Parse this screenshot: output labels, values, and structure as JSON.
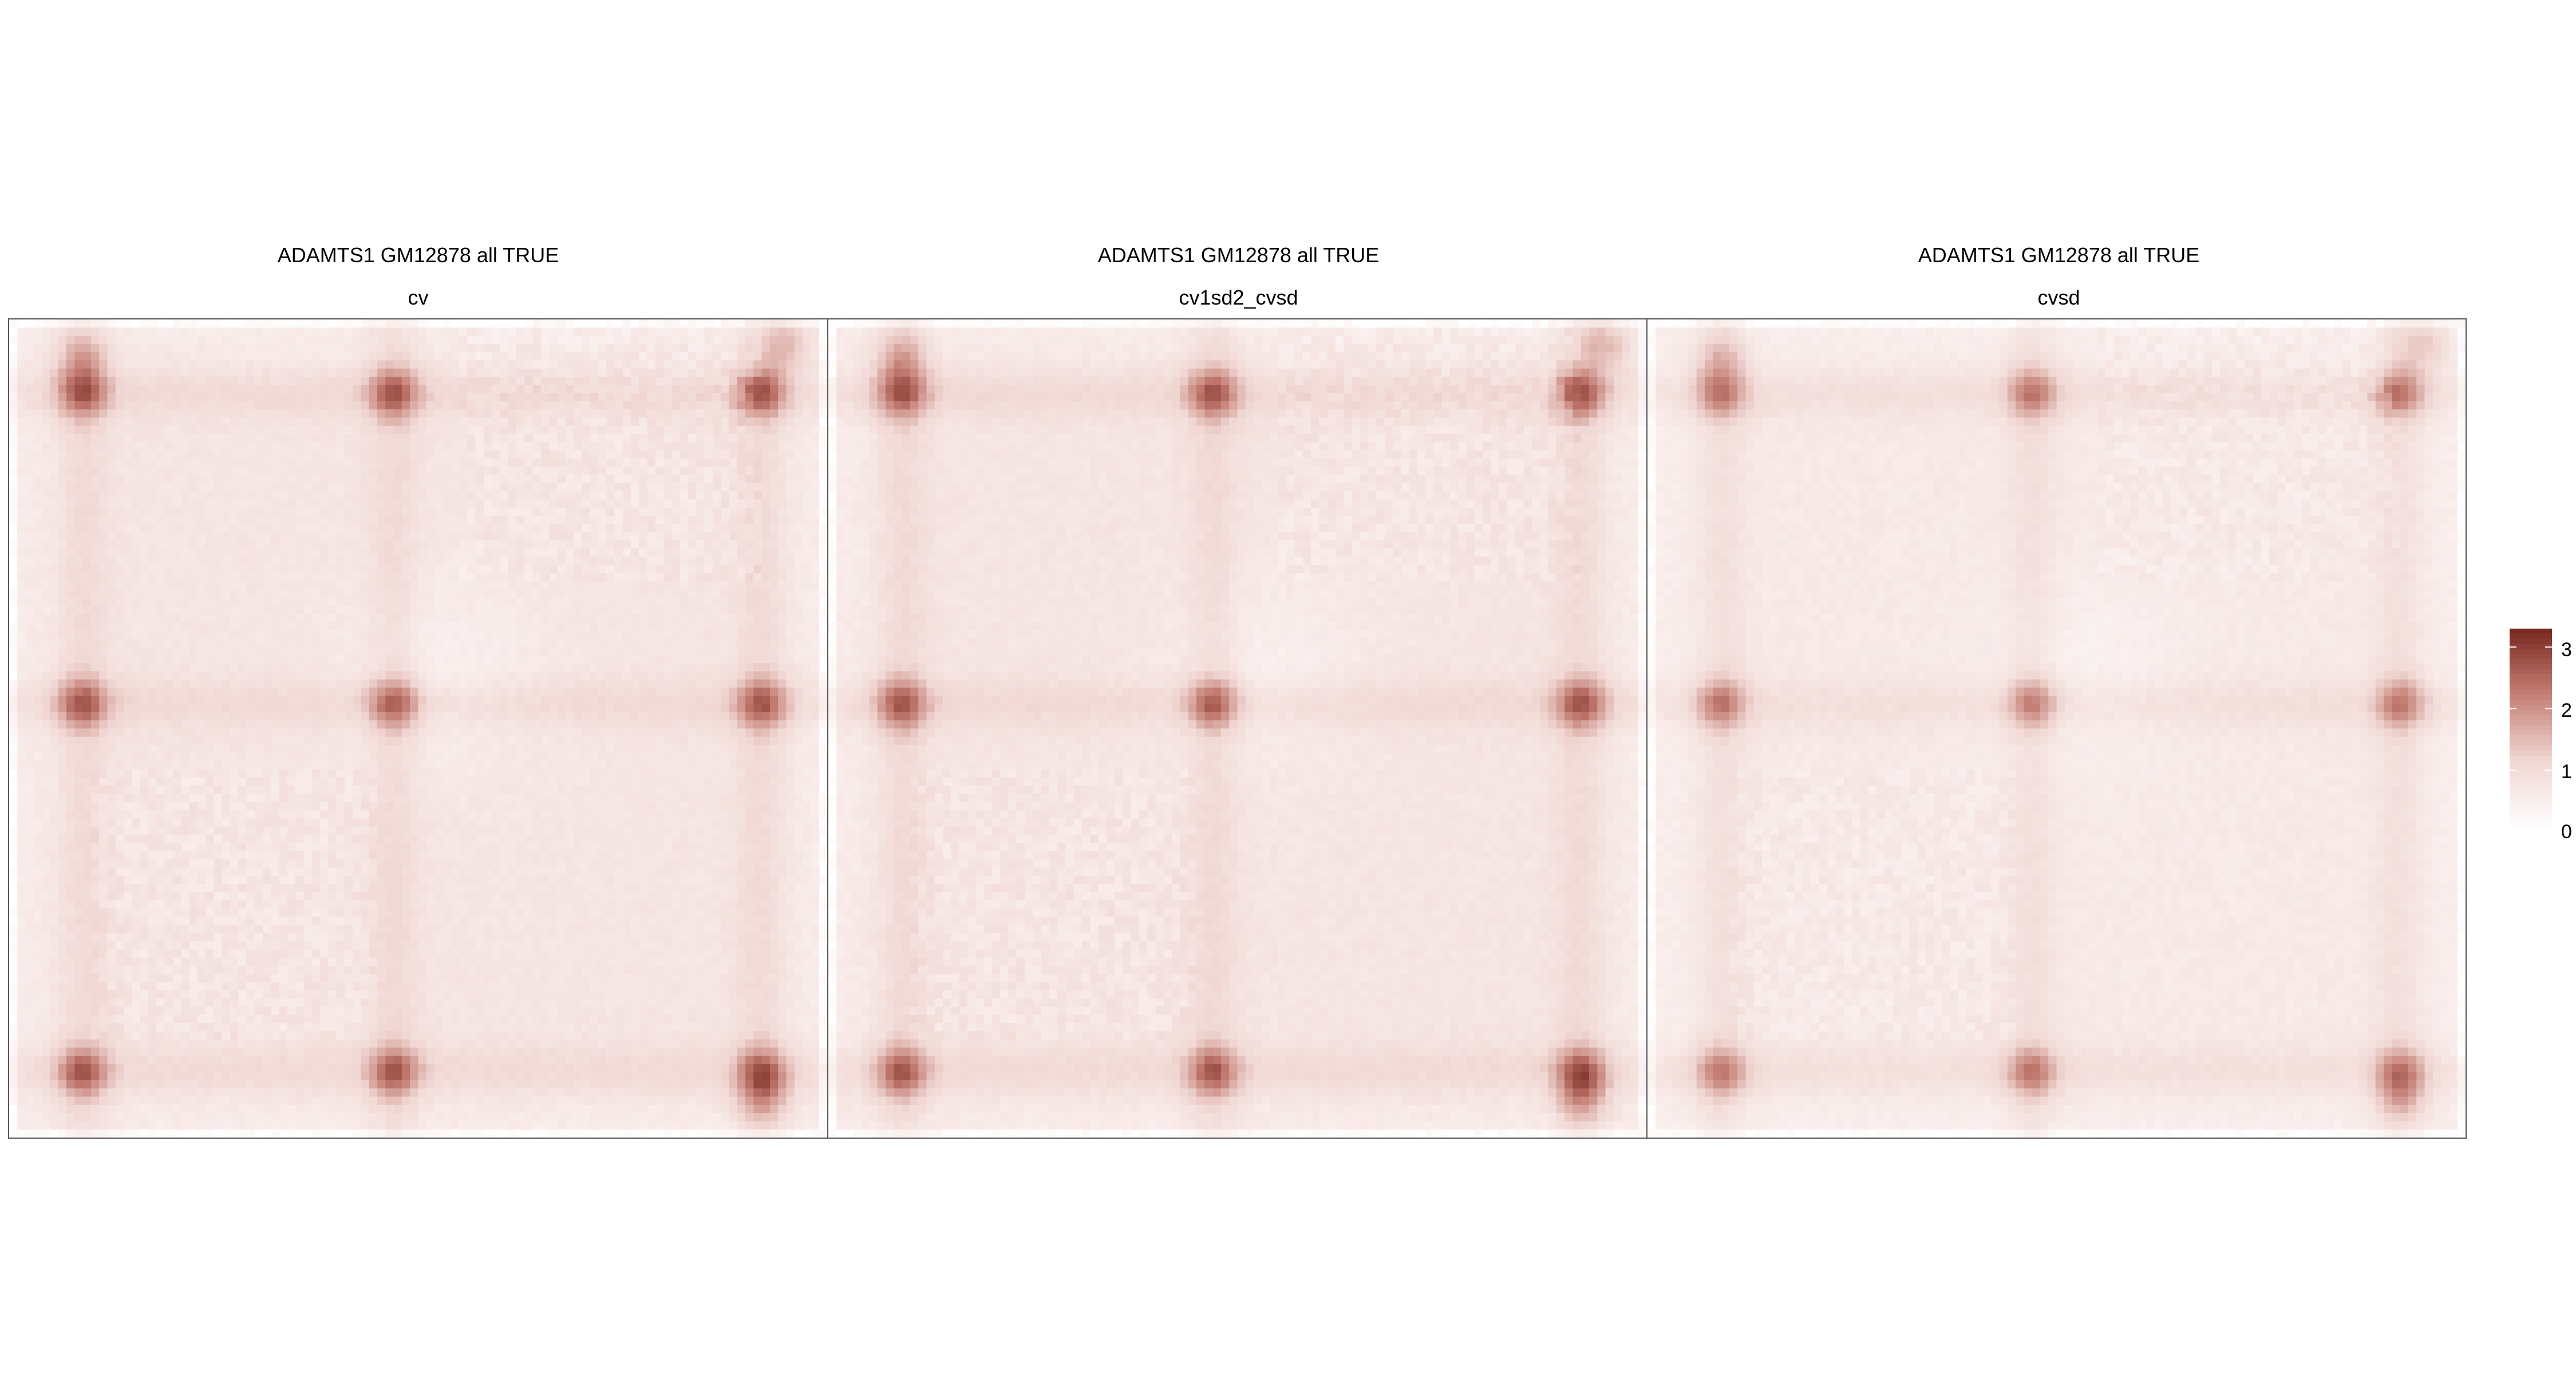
{
  "chart_data": [
    {
      "type": "heatmap",
      "title": "ADAMTS1 GM12878 all TRUE",
      "subtitle": "cv"
    },
    {
      "type": "heatmap",
      "title": "ADAMTS1 GM12878 all TRUE",
      "subtitle": "cv1sd2_cvsd"
    },
    {
      "type": "heatmap",
      "title": "ADAMTS1 GM12878 all TRUE",
      "subtitle": "cvsd"
    }
  ],
  "colorbar": {
    "min": 0,
    "max": 3.3,
    "ticks": [
      "0",
      "1",
      "2",
      "3"
    ],
    "low_color": "#ffffff",
    "high_color": "#7a2a22"
  },
  "hotspots": {
    "axis_positions": [
      0.09,
      0.47,
      0.92
    ],
    "edge_band": [
      0.055,
      0.915
    ],
    "row_dots": [
      0.23,
      0.37,
      0.63,
      0.77
    ]
  }
}
